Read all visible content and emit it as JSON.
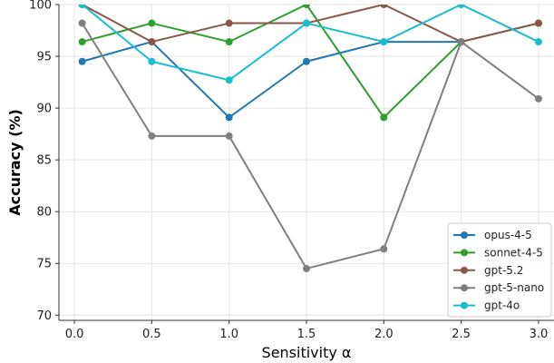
{
  "chart_data": {
    "type": "line",
    "xlabel": "Sensitivity α",
    "ylabel": "Accuracy (%)",
    "x": [
      0.05,
      0.5,
      1.0,
      1.5,
      2.0,
      2.5,
      3.0
    ],
    "xlim": [
      -0.1,
      3.1
    ],
    "ylim": [
      69.5,
      100
    ],
    "xticks": [
      0.0,
      0.5,
      1.0,
      1.5,
      2.0,
      2.5,
      3.0
    ],
    "xtick_labels": [
      "0.0",
      "0.5",
      "1.0",
      "1.5",
      "2.0",
      "2.5",
      "3.0"
    ],
    "yticks": [
      70,
      75,
      80,
      85,
      90,
      95,
      100
    ],
    "ytick_labels": [
      "70",
      "75",
      "80",
      "85",
      "90",
      "95",
      "100"
    ],
    "grid": true,
    "legend_position": "lower-right",
    "series": [
      {
        "name": "opus-4-5",
        "color": "#1f77b4",
        "values": [
          94.5,
          96.4,
          89.1,
          94.5,
          96.4,
          96.4,
          98.2
        ]
      },
      {
        "name": "sonnet-4-5",
        "color": "#2ca02c",
        "values": [
          96.4,
          98.2,
          96.4,
          100,
          89.1,
          96.4,
          98.2
        ]
      },
      {
        "name": "gpt-5.2",
        "color": "#8c564b",
        "values": [
          100,
          96.4,
          98.2,
          98.2,
          100,
          96.4,
          98.2
        ]
      },
      {
        "name": "gpt-5-nano",
        "color": "#7f7f7f",
        "values": [
          98.2,
          87.3,
          87.3,
          74.5,
          76.4,
          96.4,
          90.9
        ]
      },
      {
        "name": "gpt-4o",
        "color": "#17becf",
        "values": [
          100,
          94.5,
          92.7,
          98.2,
          96.4,
          100,
          96.4
        ]
      }
    ]
  }
}
